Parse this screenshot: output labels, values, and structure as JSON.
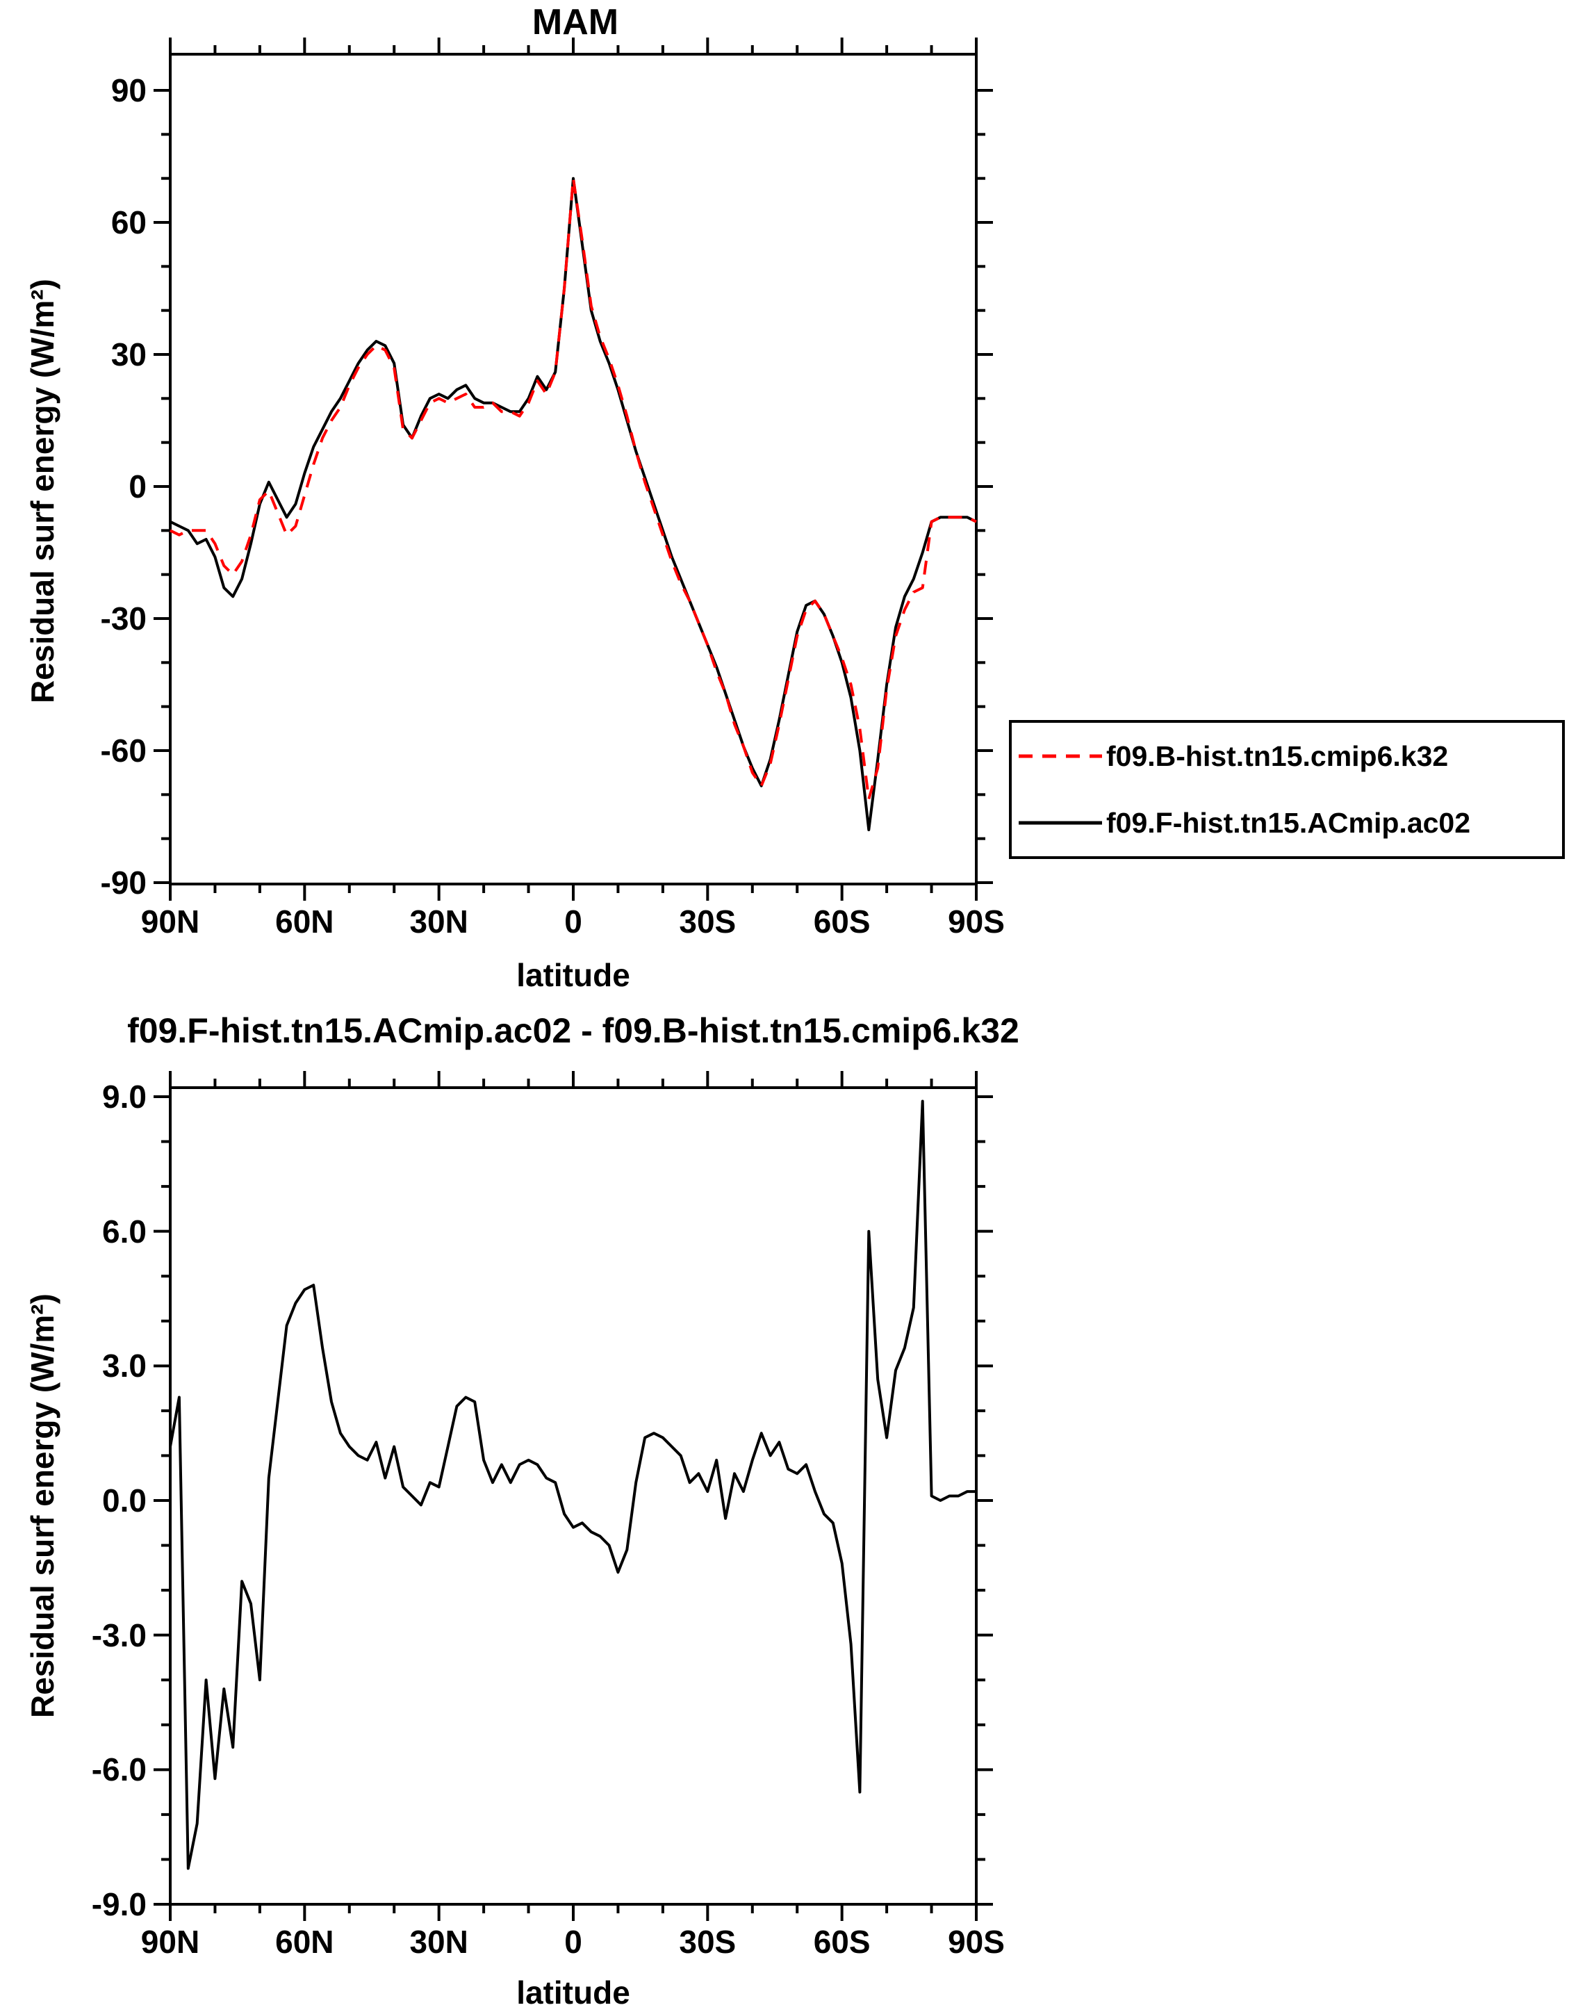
{
  "figure": {
    "background": "#ffffff",
    "axis_color": "#000000",
    "text_color": "#000000"
  },
  "chart_data": [
    {
      "id": "top",
      "type": "line",
      "title": "MAM",
      "xlabel": "latitude",
      "ylabel": "Residual surf energy (W/m²)",
      "xlim": [
        90,
        -90
      ],
      "ylim": [
        -90,
        90
      ],
      "xticks": [
        90,
        60,
        30,
        0,
        -30,
        -60,
        -90
      ],
      "xtick_labels": [
        "90N",
        "60N",
        "30N",
        "0",
        "30S",
        "60S",
        "90S"
      ],
      "x_minor_step": 10,
      "yticks": [
        90,
        60,
        30,
        0,
        -30,
        -60,
        -90
      ],
      "ytick_labels": [
        "90",
        "60",
        "30",
        "0",
        "-30",
        "-60",
        "-90"
      ],
      "y_minor_step": 10,
      "grid": false,
      "legend_position": "outside-right",
      "x": [
        90,
        88,
        86,
        84,
        82,
        80,
        78,
        76,
        74,
        72,
        70,
        68,
        66,
        64,
        62,
        60,
        58,
        56,
        54,
        52,
        50,
        48,
        46,
        44,
        42,
        40,
        38,
        36,
        34,
        32,
        30,
        28,
        26,
        24,
        22,
        20,
        18,
        16,
        14,
        12,
        10,
        8,
        6,
        4,
        2,
        0,
        -2,
        -4,
        -6,
        -8,
        -10,
        -12,
        -14,
        -16,
        -18,
        -20,
        -22,
        -24,
        -26,
        -28,
        -30,
        -32,
        -34,
        -36,
        -38,
        -40,
        -42,
        -44,
        -46,
        -48,
        -50,
        -52,
        -54,
        -56,
        -58,
        -60,
        -62,
        -64,
        -66,
        -68,
        -70,
        -72,
        -74,
        -76,
        -78,
        -80,
        -82,
        -84,
        -86,
        -88,
        -90
      ],
      "series": [
        {
          "name": "f09.F-hist.tn15.ACmip.ac02",
          "color": "#000000",
          "style": "solid",
          "values": [
            -8,
            -9,
            -10,
            -13,
            -12,
            -16,
            -23,
            -25,
            -21,
            -13,
            -4,
            1,
            -3,
            -7,
            -4,
            3,
            9,
            13,
            17,
            20,
            24,
            28,
            31,
            33,
            32,
            28,
            14,
            11,
            16,
            20,
            21,
            20,
            22,
            23,
            20,
            19,
            19,
            18,
            17,
            17,
            20,
            25,
            22,
            26,
            45,
            70,
            55,
            40,
            33,
            28,
            22,
            15,
            8,
            2,
            -4,
            -10,
            -16,
            -21,
            -26,
            -31,
            -36,
            -41,
            -47,
            -53,
            -59,
            -64,
            -68,
            -62,
            -53,
            -43,
            -33,
            -27,
            -26,
            -29,
            -34,
            -40,
            -48,
            -60,
            -78,
            -62,
            -45,
            -32,
            -25,
            -21,
            -15,
            -8,
            -7,
            -7,
            -7,
            -7,
            -8
          ]
        },
        {
          "name": "f09.B-hist.tn15.cmip6.k32",
          "color": "#ff0000",
          "style": "dashed",
          "values": [
            -10,
            -11,
            -10,
            -10,
            -10,
            -13,
            -18,
            -20,
            -17,
            -11,
            -3,
            -1,
            -6,
            -11,
            -9,
            -2,
            5,
            11,
            15,
            18,
            23,
            27,
            30,
            32,
            31,
            27,
            13,
            11,
            15,
            19,
            20,
            19,
            20,
            21,
            18,
            18,
            19,
            17,
            17,
            16,
            19,
            24,
            21,
            26,
            45,
            70,
            56,
            41,
            34,
            29,
            23,
            16,
            8,
            1,
            -5,
            -11,
            -17,
            -22,
            -26,
            -31,
            -36,
            -42,
            -47,
            -54,
            -59,
            -65,
            -68,
            -63,
            -54,
            -44,
            -34,
            -28,
            -26,
            -29,
            -34,
            -39,
            -45,
            -55,
            -71,
            -64,
            -46,
            -34,
            -28,
            -24,
            -23,
            -8,
            -7,
            -7,
            -7,
            -7,
            -8
          ]
        }
      ],
      "legend": [
        {
          "label": "f09.B-hist.tn15.cmip6.k32",
          "color": "#ff0000",
          "style": "dashed"
        },
        {
          "label": "f09.F-hist.tn15.ACmip.ac02",
          "color": "#000000",
          "style": "solid"
        }
      ]
    },
    {
      "id": "bottom",
      "type": "line",
      "title": "f09.F-hist.tn15.ACmip.ac02 - f09.B-hist.tn15.cmip6.k32",
      "xlabel": "latitude",
      "ylabel": "Residual surf energy (W/m²)",
      "xlim": [
        90,
        -90
      ],
      "ylim": [
        -9,
        9
      ],
      "xticks": [
        90,
        60,
        30,
        0,
        -30,
        -60,
        -90
      ],
      "xtick_labels": [
        "90N",
        "60N",
        "30N",
        "0",
        "30S",
        "60S",
        "90S"
      ],
      "x_minor_step": 10,
      "yticks": [
        9,
        6,
        3,
        0,
        -3,
        -6,
        -9
      ],
      "ytick_labels": [
        "9.0",
        "6.0",
        "3.0",
        "0.0",
        "-3.0",
        "-6.0",
        "-9.0"
      ],
      "y_minor_step": 1,
      "grid": false,
      "x": [
        90,
        88,
        86,
        84,
        82,
        80,
        78,
        76,
        74,
        72,
        70,
        68,
        66,
        64,
        62,
        60,
        58,
        56,
        54,
        52,
        50,
        48,
        46,
        44,
        42,
        40,
        38,
        36,
        34,
        32,
        30,
        28,
        26,
        24,
        22,
        20,
        18,
        16,
        14,
        12,
        10,
        8,
        6,
        4,
        2,
        0,
        -2,
        -4,
        -6,
        -8,
        -10,
        -12,
        -14,
        -16,
        -18,
        -20,
        -22,
        -24,
        -26,
        -28,
        -30,
        -32,
        -34,
        -36,
        -38,
        -40,
        -42,
        -44,
        -46,
        -48,
        -50,
        -52,
        -54,
        -56,
        -58,
        -60,
        -62,
        -64,
        -66,
        -68,
        -70,
        -72,
        -74,
        -76,
        -78,
        -80,
        -82,
        -84,
        -86,
        -88,
        -90
      ],
      "series": [
        {
          "name": "f09.F-hist.tn15.ACmip.ac02 - f09.B-hist.tn15.cmip6.k32",
          "color": "#000000",
          "style": "solid",
          "values": [
            1.2,
            2.3,
            -8.2,
            -7.2,
            -4.0,
            -6.2,
            -4.2,
            -5.5,
            -1.8,
            -2.3,
            -4.0,
            0.5,
            2.2,
            3.9,
            4.4,
            4.7,
            4.8,
            3.4,
            2.2,
            1.5,
            1.2,
            1.0,
            0.9,
            1.3,
            0.5,
            1.2,
            0.3,
            0.1,
            -0.1,
            0.4,
            0.3,
            1.2,
            2.1,
            2.3,
            2.2,
            0.9,
            0.4,
            0.8,
            0.4,
            0.8,
            0.9,
            0.8,
            0.5,
            0.4,
            -0.3,
            -0.6,
            -0.5,
            -0.7,
            -0.8,
            -1.0,
            -1.6,
            -1.1,
            0.4,
            1.4,
            1.5,
            1.4,
            1.2,
            1.0,
            0.4,
            0.6,
            0.2,
            0.9,
            -0.4,
            0.6,
            0.2,
            0.9,
            1.5,
            1.0,
            1.3,
            0.7,
            0.6,
            0.8,
            0.2,
            -0.3,
            -0.5,
            -1.4,
            -3.2,
            -6.5,
            6.0,
            2.7,
            1.4,
            2.9,
            3.4,
            4.3,
            8.9,
            0.1,
            0.0,
            0.1,
            0.1,
            0.2,
            0.2
          ]
        }
      ]
    }
  ]
}
